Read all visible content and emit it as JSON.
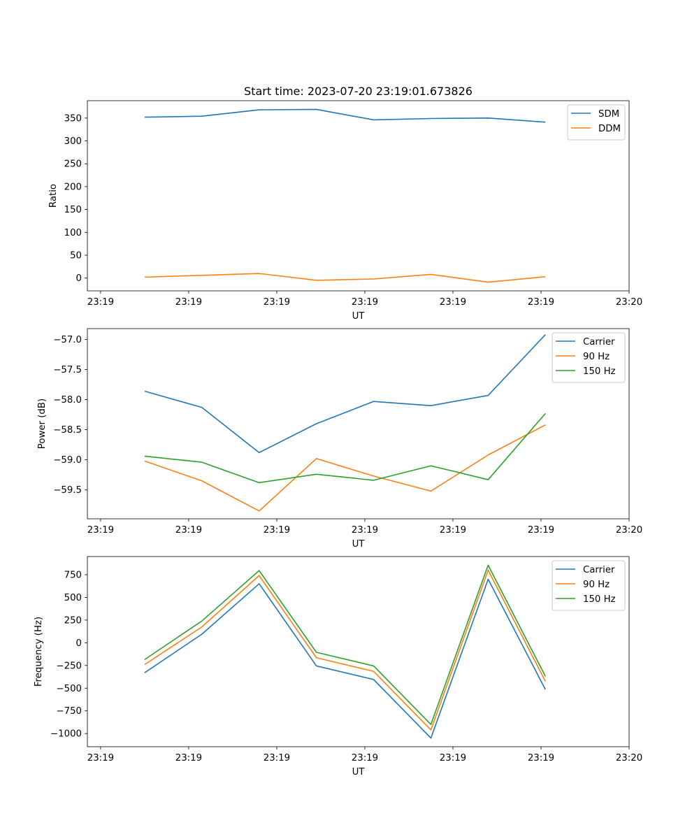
{
  "figure_title": "Start time: 2023-07-20 23:19:01.673826",
  "chart_data": [
    {
      "type": "line",
      "title": "Start time: 2023-07-20 23:19:01.673826",
      "xlabel": "UT",
      "ylabel": "Ratio",
      "x_tick_labels": [
        "23:19",
        "23:19",
        "23:19",
        "23:19",
        "23:19",
        "23:19",
        "23:20"
      ],
      "x_points": [
        0.5,
        1.15,
        1.8,
        2.45,
        3.1,
        3.75,
        4.4,
        5.05
      ],
      "xlim": [
        -0.15,
        6.0
      ],
      "ylim": [
        -28,
        388
      ],
      "yticks": [
        0,
        50,
        100,
        150,
        200,
        250,
        300,
        350
      ],
      "y_tick_labels": [
        "0",
        "50",
        "100",
        "150",
        "200",
        "250",
        "300",
        "350"
      ],
      "legend_position": "top-right",
      "series": [
        {
          "name": "SDM",
          "color": "#1f77b4",
          "values": [
            352,
            354,
            368,
            369,
            346,
            349,
            350,
            341
          ]
        },
        {
          "name": "DDM",
          "color": "#ff7f0e",
          "values": [
            2,
            6,
            10,
            -5,
            -2,
            8,
            -9,
            3
          ]
        }
      ]
    },
    {
      "type": "line",
      "title": "",
      "xlabel": "UT",
      "ylabel": "Power (dB)",
      "x_tick_labels": [
        "23:19",
        "23:19",
        "23:19",
        "23:19",
        "23:19",
        "23:19",
        "23:20"
      ],
      "x_points": [
        0.5,
        1.15,
        1.8,
        2.45,
        3.1,
        3.75,
        4.4,
        5.05
      ],
      "xlim": [
        -0.15,
        6.0
      ],
      "ylim": [
        -59.98,
        -56.82
      ],
      "yticks": [
        -59.5,
        -59.0,
        -58.5,
        -58.0,
        -57.5,
        -57.0
      ],
      "y_tick_labels": [
        "−59.5",
        "−59.0",
        "−58.5",
        "−58.0",
        "−57.5",
        "−57.0"
      ],
      "legend_position": "top-right",
      "series": [
        {
          "name": "Carrier",
          "color": "#1f77b4",
          "values": [
            -57.86,
            -58.13,
            -58.88,
            -58.4,
            -58.03,
            -58.1,
            -57.93,
            -56.92
          ]
        },
        {
          "name": "90 Hz",
          "color": "#ff7f0e",
          "values": [
            -59.02,
            -59.35,
            -59.85,
            -58.98,
            -59.27,
            -59.52,
            -58.92,
            -58.42
          ]
        },
        {
          "name": "150 Hz",
          "color": "#2ca02c",
          "values": [
            -58.94,
            -59.04,
            -59.38,
            -59.24,
            -59.34,
            -59.1,
            -59.33,
            -58.23
          ]
        }
      ]
    },
    {
      "type": "line",
      "title": "",
      "xlabel": "UT",
      "ylabel": "Frequency (Hz)",
      "x_tick_labels": [
        "23:19",
        "23:19",
        "23:19",
        "23:19",
        "23:19",
        "23:19",
        "23:20"
      ],
      "x_points": [
        0.5,
        1.15,
        1.8,
        2.45,
        3.1,
        3.75,
        4.4,
        5.05
      ],
      "xlim": [
        -0.15,
        6.0
      ],
      "ylim": [
        -1145,
        950
      ],
      "yticks": [
        -1000,
        -750,
        -500,
        -250,
        0,
        250,
        500,
        750
      ],
      "y_tick_labels": [
        "−1000",
        "−750",
        "−500",
        "−250",
        "0",
        "250",
        "500",
        "750"
      ],
      "legend_position": "top-right",
      "series": [
        {
          "name": "Carrier",
          "color": "#1f77b4",
          "values": [
            -330,
            95,
            650,
            -255,
            -405,
            -1050,
            700,
            -515
          ]
        },
        {
          "name": "90 Hz",
          "color": "#ff7f0e",
          "values": [
            -240,
            175,
            740,
            -165,
            -315,
            -960,
            800,
            -425
          ]
        },
        {
          "name": "150 Hz",
          "color": "#2ca02c",
          "values": [
            -185,
            240,
            795,
            -105,
            -255,
            -900,
            855,
            -370
          ]
        }
      ]
    }
  ]
}
